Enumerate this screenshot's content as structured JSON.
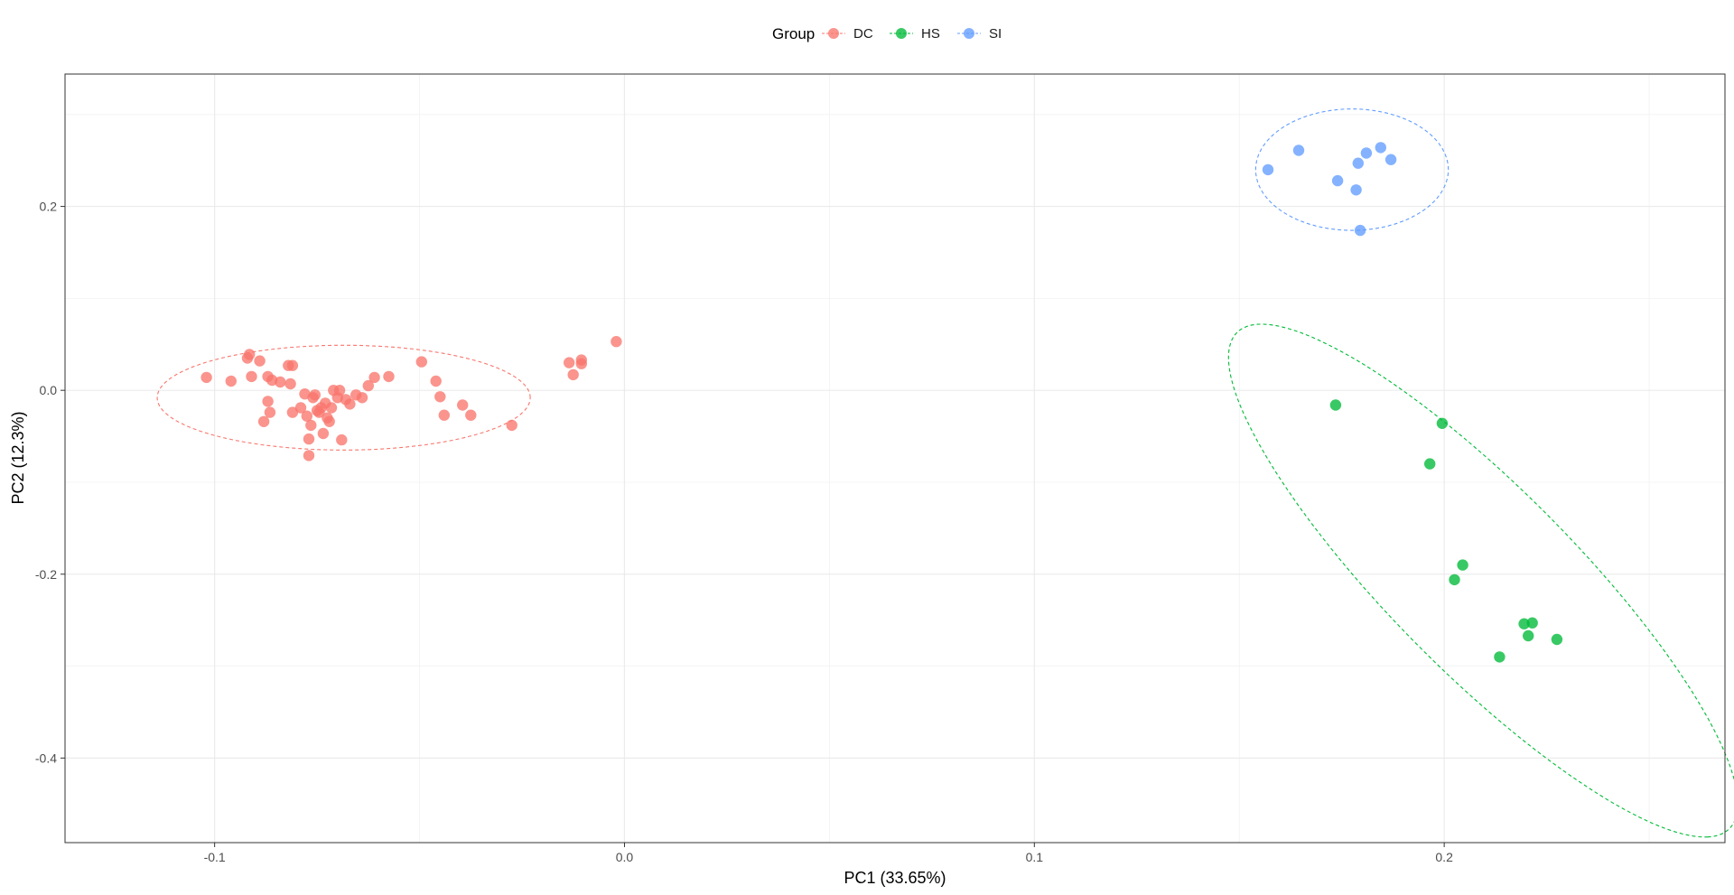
{
  "chart_data": {
    "type": "scatter",
    "title": "",
    "xlabel": "PC1 (33.65%)",
    "ylabel": "PC2 (12.3%)",
    "xlim": [
      -0.1365,
      0.2685
    ],
    "ylim": [
      -0.492,
      0.344
    ],
    "xticks": [
      -0.1,
      0.0,
      0.1,
      0.2
    ],
    "xtick_labels": [
      "-0.1",
      "0.0",
      "0.1",
      "0.2"
    ],
    "yticks": [
      -0.4,
      -0.2,
      0.0,
      0.2
    ],
    "ytick_labels": [
      "-0.4",
      "-0.2",
      "0.0",
      "0.2"
    ],
    "grid": true,
    "legend": {
      "title": "Group",
      "position": "top"
    },
    "series": [
      {
        "name": "DC",
        "color": "#F8766D",
        "points": [
          [
            -0.102,
            0.014
          ],
          [
            -0.096,
            0.01
          ],
          [
            -0.092,
            0.035
          ],
          [
            -0.0915,
            0.039
          ],
          [
            -0.091,
            0.015
          ],
          [
            -0.089,
            0.032
          ],
          [
            -0.088,
            -0.034
          ],
          [
            -0.087,
            0.015
          ],
          [
            -0.087,
            -0.012
          ],
          [
            -0.0865,
            -0.024
          ],
          [
            -0.086,
            0.011
          ],
          [
            -0.084,
            0.009
          ],
          [
            -0.082,
            0.027
          ],
          [
            -0.0815,
            0.007
          ],
          [
            -0.081,
            0.027
          ],
          [
            -0.081,
            -0.024
          ],
          [
            -0.079,
            -0.019
          ],
          [
            -0.078,
            -0.004
          ],
          [
            -0.0775,
            -0.028
          ],
          [
            -0.077,
            -0.053
          ],
          [
            -0.077,
            -0.071
          ],
          [
            -0.0765,
            -0.038
          ],
          [
            -0.076,
            -0.008
          ],
          [
            -0.0755,
            -0.005
          ],
          [
            -0.075,
            -0.022
          ],
          [
            -0.0745,
            -0.024
          ],
          [
            -0.074,
            -0.019
          ],
          [
            -0.0735,
            -0.047
          ],
          [
            -0.073,
            -0.014
          ],
          [
            -0.0725,
            -0.03
          ],
          [
            -0.072,
            -0.034
          ],
          [
            -0.0715,
            -0.019
          ],
          [
            -0.071,
            0.0
          ],
          [
            -0.07,
            -0.008
          ],
          [
            -0.0695,
            0.0
          ],
          [
            -0.069,
            -0.054
          ],
          [
            -0.068,
            -0.01
          ],
          [
            -0.067,
            -0.015
          ],
          [
            -0.0655,
            -0.005
          ],
          [
            -0.064,
            -0.008
          ],
          [
            -0.0625,
            0.005
          ],
          [
            -0.061,
            0.014
          ],
          [
            -0.0575,
            0.015
          ],
          [
            -0.0495,
            0.031
          ],
          [
            -0.046,
            0.01
          ],
          [
            -0.045,
            -0.007
          ],
          [
            -0.044,
            -0.027
          ],
          [
            -0.0395,
            -0.016
          ],
          [
            -0.0375,
            -0.027
          ],
          [
            -0.0275,
            -0.038
          ],
          [
            -0.0135,
            0.03
          ],
          [
            -0.0125,
            0.017
          ],
          [
            -0.0105,
            0.033
          ],
          [
            -0.0105,
            0.029
          ],
          [
            -0.002,
            0.053
          ]
        ]
      },
      {
        "name": "HS",
        "color": "#00BA38",
        "points": [
          [
            0.1735,
            -0.016
          ],
          [
            0.1965,
            -0.08
          ],
          [
            0.1995,
            -0.036
          ],
          [
            0.2025,
            -0.206
          ],
          [
            0.2045,
            -0.19
          ],
          [
            0.2135,
            -0.29
          ],
          [
            0.2195,
            -0.254
          ],
          [
            0.2205,
            -0.267
          ],
          [
            0.2215,
            -0.253
          ],
          [
            0.2275,
            -0.271
          ]
        ]
      },
      {
        "name": "SI",
        "color": "#619CFF",
        "points": [
          [
            0.157,
            0.24
          ],
          [
            0.1645,
            0.261
          ],
          [
            0.174,
            0.228
          ],
          [
            0.1785,
            0.218
          ],
          [
            0.179,
            0.247
          ],
          [
            0.1795,
            0.174
          ],
          [
            0.181,
            0.258
          ],
          [
            0.1845,
            0.264
          ],
          [
            0.187,
            0.251
          ]
        ]
      }
    ],
    "ellipses": [
      {
        "group": "DC",
        "center": [
          -0.0685,
          -0.008
        ],
        "semi_axes": [
          0.0455,
          0.057
        ],
        "angle_deg": 0,
        "color": "#F8766D",
        "style": "dashed"
      },
      {
        "group": "HS",
        "center": [
          0.2095,
          -0.207
        ],
        "semi_axes": [
          0.2842,
          0.03
        ],
        "angle_deg": -78.9,
        "color": "#00BA38",
        "style": "dashed"
      },
      {
        "group": "SI",
        "center": [
          0.1775,
          0.24
        ],
        "semi_axes": [
          0.0235,
          0.066
        ],
        "angle_deg": 0,
        "color": "#619CFF",
        "style": "dashed"
      }
    ]
  }
}
